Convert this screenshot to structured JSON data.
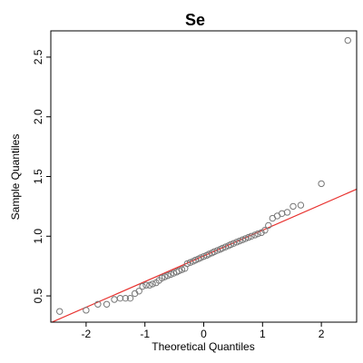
{
  "chart_data": {
    "type": "scatter",
    "title": "Se",
    "xlabel": "Theoretical Quantiles",
    "ylabel": "Sample Quantiles",
    "xlim": [
      -2.6,
      2.6
    ],
    "ylim": [
      0.28,
      2.72
    ],
    "xticks": [
      -2,
      -1,
      0,
      1,
      2
    ],
    "xtick_labels": [
      "-2",
      "-1",
      "0",
      "1",
      "2"
    ],
    "yticks": [
      0.5,
      1.0,
      1.5,
      2.0,
      2.5
    ],
    "ytick_labels": [
      "0.5",
      "1.0",
      "1.5",
      "2.0",
      "2.5"
    ],
    "grid": false,
    "reference_line": {
      "color": "#e8322f",
      "intercept": 0.835,
      "slope": 0.215
    },
    "point_color": "#777777",
    "points": [
      [
        -2.45,
        0.37
      ],
      [
        -2.0,
        0.38
      ],
      [
        -1.8,
        0.43
      ],
      [
        -1.65,
        0.43
      ],
      [
        -1.52,
        0.47
      ],
      [
        -1.42,
        0.48
      ],
      [
        -1.33,
        0.48
      ],
      [
        -1.25,
        0.48
      ],
      [
        -1.17,
        0.52
      ],
      [
        -1.1,
        0.54
      ],
      [
        -1.04,
        0.58
      ],
      [
        -0.98,
        0.59
      ],
      [
        -0.92,
        0.59
      ],
      [
        -0.87,
        0.6
      ],
      [
        -0.81,
        0.61
      ],
      [
        -0.76,
        0.63
      ],
      [
        -0.71,
        0.65
      ],
      [
        -0.66,
        0.66
      ],
      [
        -0.61,
        0.67
      ],
      [
        -0.56,
        0.68
      ],
      [
        -0.51,
        0.69
      ],
      [
        -0.46,
        0.7
      ],
      [
        -0.42,
        0.71
      ],
      [
        -0.37,
        0.72
      ],
      [
        -0.32,
        0.73
      ],
      [
        -0.28,
        0.77
      ],
      [
        -0.23,
        0.78
      ],
      [
        -0.18,
        0.79
      ],
      [
        -0.14,
        0.8
      ],
      [
        -0.09,
        0.81
      ],
      [
        -0.05,
        0.82
      ],
      [
        0.0,
        0.83
      ],
      [
        0.05,
        0.84
      ],
      [
        0.09,
        0.85
      ],
      [
        0.14,
        0.86
      ],
      [
        0.18,
        0.87
      ],
      [
        0.23,
        0.88
      ],
      [
        0.28,
        0.89
      ],
      [
        0.32,
        0.9
      ],
      [
        0.37,
        0.91
      ],
      [
        0.42,
        0.92
      ],
      [
        0.46,
        0.93
      ],
      [
        0.51,
        0.94
      ],
      [
        0.56,
        0.95
      ],
      [
        0.61,
        0.96
      ],
      [
        0.66,
        0.97
      ],
      [
        0.71,
        0.98
      ],
      [
        0.76,
        0.99
      ],
      [
        0.81,
        1.0
      ],
      [
        0.87,
        1.01
      ],
      [
        0.92,
        1.02
      ],
      [
        0.98,
        1.03
      ],
      [
        1.04,
        1.05
      ],
      [
        1.1,
        1.09
      ],
      [
        1.17,
        1.15
      ],
      [
        1.25,
        1.17
      ],
      [
        1.33,
        1.19
      ],
      [
        1.42,
        1.2
      ],
      [
        1.52,
        1.25
      ],
      [
        1.65,
        1.26
      ],
      [
        2.0,
        1.44
      ],
      [
        2.45,
        2.64
      ]
    ]
  }
}
